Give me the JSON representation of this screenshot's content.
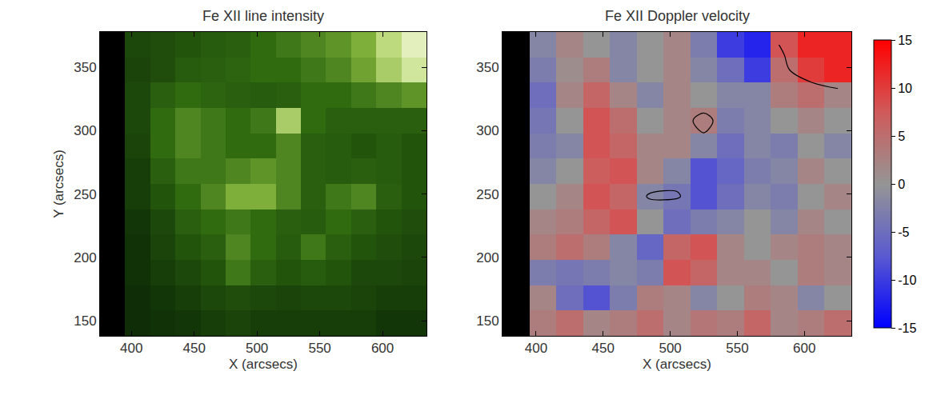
{
  "chart_data": [
    {
      "type": "heatmap",
      "title": "Fe XII line intensity",
      "x_label": "X (arcsecs)",
      "y_label": "Y (arcsecs)",
      "x": [
        385,
        405,
        425,
        445,
        465,
        485,
        505,
        525,
        545,
        565,
        585,
        605,
        625
      ],
      "y": [
        148,
        168,
        188,
        208,
        228,
        248,
        268,
        288,
        308,
        328,
        348,
        368
      ],
      "cells": [
        [
          null,
          18,
          20,
          22,
          25,
          28,
          25,
          25,
          25,
          25,
          25,
          22,
          22
        ],
        [
          null,
          18,
          22,
          25,
          30,
          32,
          30,
          28,
          30,
          30,
          28,
          25,
          25
        ],
        [
          null,
          20,
          25,
          30,
          35,
          50,
          40,
          35,
          38,
          35,
          30,
          30,
          28
        ],
        [
          null,
          20,
          28,
          35,
          40,
          55,
          45,
          38,
          50,
          40,
          35,
          32,
          30
        ],
        [
          null,
          22,
          30,
          40,
          45,
          50,
          45,
          40,
          38,
          45,
          40,
          35,
          32
        ],
        [
          null,
          25,
          35,
          45,
          55,
          70,
          70,
          55,
          40,
          50,
          55,
          40,
          35
        ],
        [
          null,
          25,
          40,
          50,
          50,
          55,
          60,
          55,
          40,
          38,
          40,
          38,
          35
        ],
        [
          null,
          28,
          45,
          55,
          50,
          45,
          45,
          55,
          40,
          38,
          35,
          38,
          35
        ],
        [
          null,
          30,
          45,
          55,
          50,
          45,
          50,
          80,
          45,
          40,
          40,
          40,
          40
        ],
        [
          null,
          30,
          40,
          45,
          42,
          40,
          38,
          40,
          45,
          45,
          50,
          55,
          60
        ],
        [
          null,
          28,
          32,
          38,
          40,
          42,
          45,
          45,
          50,
          55,
          65,
          80,
          90
        ],
        [
          null,
          30,
          32,
          35,
          38,
          40,
          45,
          50,
          55,
          60,
          70,
          85,
          95
        ]
      ],
      "zlim": [
        15,
        100
      ],
      "xlim": [
        375,
        635
      ],
      "ylim": [
        138,
        378
      ],
      "xticks": [
        400,
        450,
        500,
        550,
        600
      ],
      "yticks": [
        150,
        200,
        250,
        300,
        350
      ]
    },
    {
      "type": "heatmap",
      "title": "Fe XII Doppler velocity",
      "x_label": "X (arcsecs)",
      "x": [
        385,
        405,
        425,
        445,
        465,
        485,
        505,
        525,
        545,
        565,
        585,
        605,
        625
      ],
      "y": [
        148,
        168,
        188,
        208,
        228,
        248,
        268,
        288,
        308,
        328,
        348,
        368
      ],
      "cells": [
        [
          null,
          3,
          5,
          2,
          3,
          5,
          2,
          4,
          3,
          6,
          2,
          3,
          5
        ],
        [
          null,
          2,
          -5,
          -8,
          -3,
          3,
          2,
          -2,
          0,
          3,
          2,
          -2,
          0
        ],
        [
          null,
          -3,
          -4,
          -3,
          -2,
          -3,
          8,
          6,
          2,
          2,
          0,
          3,
          2
        ],
        [
          null,
          3,
          5,
          3,
          -2,
          -6,
          6,
          8,
          2,
          0,
          2,
          3,
          2
        ],
        [
          null,
          2,
          3,
          6,
          8,
          0,
          -5,
          -3,
          -2,
          0,
          -2,
          2,
          0
        ],
        [
          null,
          0,
          2,
          8,
          6,
          -2,
          -4,
          -8,
          -5,
          -2,
          -3,
          0,
          2
        ],
        [
          null,
          -2,
          0,
          7,
          8,
          2,
          -2,
          -8,
          -6,
          -3,
          -2,
          2,
          0
        ],
        [
          null,
          -3,
          -2,
          8,
          6,
          2,
          2,
          -2,
          -5,
          -2,
          -3,
          0,
          -2
        ],
        [
          null,
          -4,
          0,
          8,
          5,
          0,
          2,
          3,
          -3,
          -2,
          0,
          2,
          0
        ],
        [
          null,
          -5,
          2,
          6,
          2,
          -2,
          2,
          0,
          -2,
          -2,
          3,
          5,
          2
        ],
        [
          null,
          -3,
          1,
          3,
          -2,
          0,
          2,
          -2,
          -5,
          -10,
          5,
          10,
          12
        ],
        [
          null,
          -2,
          2,
          0,
          -2,
          0,
          2,
          -3,
          -10,
          -12,
          8,
          12,
          12
        ]
      ],
      "zlim": [
        -15,
        15
      ],
      "colorbar_ticks": [
        -15,
        -10,
        -5,
        0,
        5,
        10,
        15
      ],
      "contour_level": 68,
      "xlim": [
        375,
        635
      ],
      "ylim": [
        138,
        378
      ],
      "xticks": [
        400,
        450,
        500,
        550,
        600
      ],
      "yticks": [
        150,
        200,
        250,
        300,
        350
      ]
    }
  ]
}
